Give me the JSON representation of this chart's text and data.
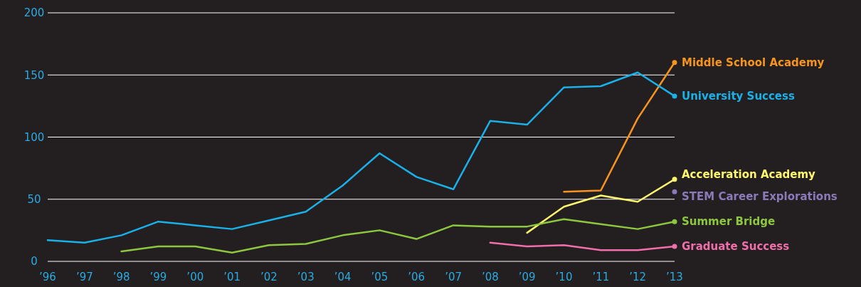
{
  "chart_data": {
    "type": "line",
    "categories": [
      "’96",
      "’97",
      "’98",
      "’99",
      "’00",
      "’01",
      "’02",
      "’03",
      "’04",
      "’05",
      "’06",
      "’07",
      "’08",
      "’09",
      "’10",
      "’11",
      "’12",
      "’13"
    ],
    "series": [
      {
        "name": "Middle School Academy",
        "color": "#f7941d",
        "values": [
          null,
          null,
          null,
          null,
          null,
          null,
          null,
          null,
          null,
          null,
          null,
          null,
          null,
          null,
          56,
          57,
          115,
          160
        ]
      },
      {
        "name": "University Success",
        "color": "#1ab0e8",
        "values": [
          17,
          15,
          21,
          32,
          29,
          26,
          33,
          40,
          61,
          87,
          68,
          58,
          113,
          110,
          140,
          141,
          152,
          133
        ]
      },
      {
        "name": "Acceleration Academy",
        "color": "#fff66f",
        "values": [
          null,
          null,
          null,
          null,
          null,
          null,
          null,
          null,
          null,
          null,
          null,
          null,
          null,
          23,
          44,
          53,
          48,
          66
        ]
      },
      {
        "name": "STEM Career Explorations",
        "color": "#8a7bb8",
        "marker": "circle",
        "values": [
          null,
          null,
          null,
          null,
          null,
          null,
          null,
          null,
          null,
          null,
          null,
          null,
          null,
          null,
          null,
          null,
          null,
          56
        ]
      },
      {
        "name": "Summer Bridge",
        "color": "#8dc63f",
        "values": [
          null,
          null,
          8,
          12,
          12,
          7,
          13,
          14,
          21,
          25,
          18,
          29,
          28,
          28,
          34,
          30,
          26,
          32
        ]
      },
      {
        "name": "Graduate Success",
        "color": "#f06ea9",
        "values": [
          null,
          null,
          null,
          null,
          null,
          null,
          null,
          null,
          null,
          null,
          null,
          null,
          15,
          12,
          13,
          9,
          9,
          12
        ]
      }
    ],
    "ylim": [
      0,
      200
    ],
    "yticks": [
      0,
      50,
      100,
      150,
      200
    ],
    "grid": "y",
    "legend": false
  }
}
